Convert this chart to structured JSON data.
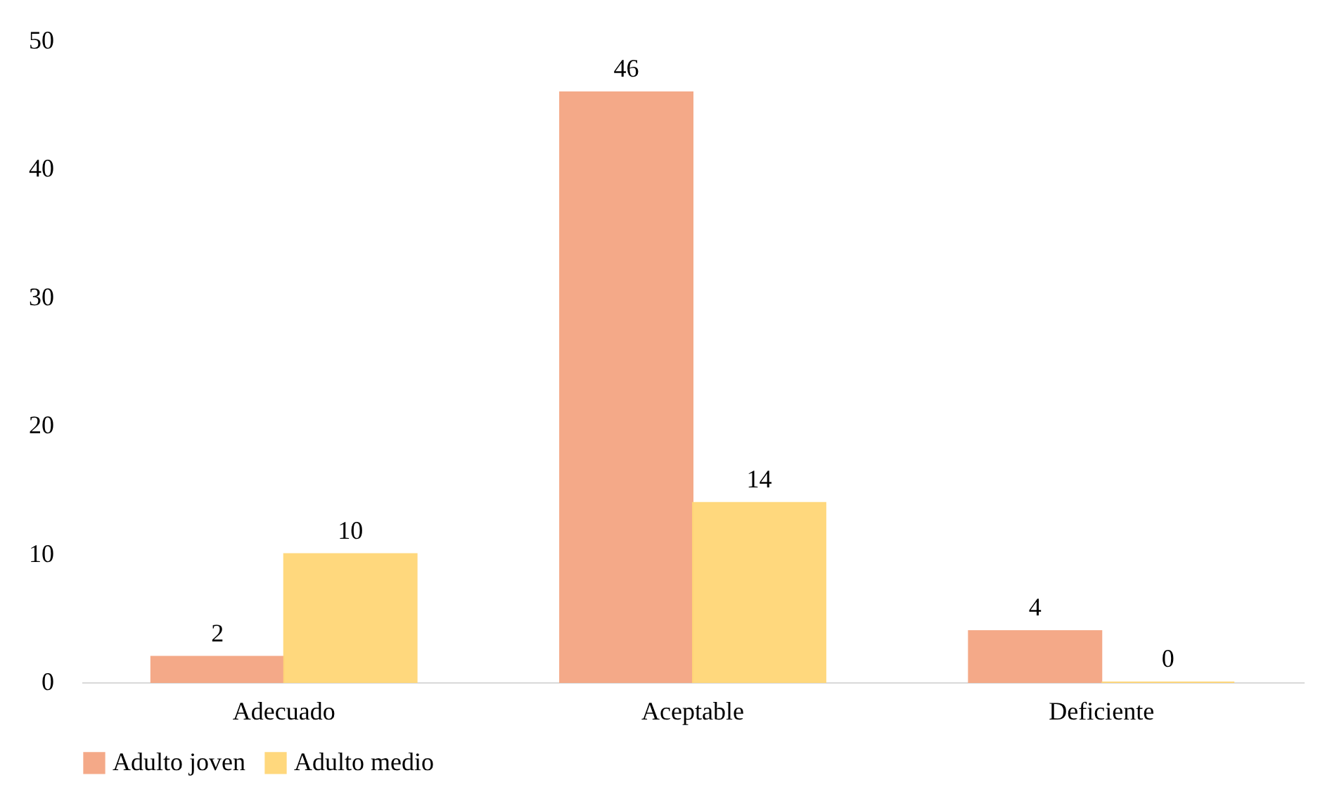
{
  "chart_data": {
    "type": "bar",
    "categories": [
      "Adecuado",
      "Aceptable",
      "Deficiente"
    ],
    "series": [
      {
        "name": "Adulto joven",
        "color": "#f4a582",
        "values": [
          2,
          46,
          4
        ]
      },
      {
        "name": "Adulto medio",
        "color": "#ffd677",
        "values": [
          10,
          14,
          0
        ]
      }
    ],
    "ylim": [
      0,
      50
    ],
    "yticks": [
      0,
      10,
      20,
      30,
      40,
      50
    ],
    "grid": false,
    "legend": "bottom",
    "data_labels": true
  }
}
